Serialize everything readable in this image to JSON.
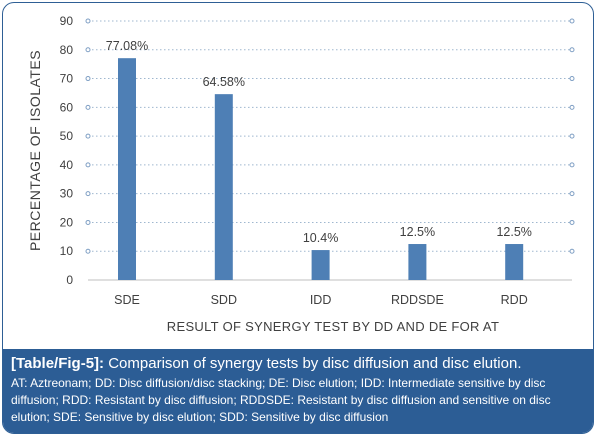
{
  "chart_data": {
    "type": "bar",
    "categories": [
      "SDE",
      "SDD",
      "IDD",
      "RDDSDE",
      "RDD"
    ],
    "values": [
      77.08,
      64.58,
      10.4,
      12.5,
      12.5
    ],
    "data_labels": [
      "77.08%",
      "64.58%",
      "10.4%",
      "12.5%",
      "12.5%"
    ],
    "xlabel": "RESULT OF SYNERGY TEST BY DD AND DE FOR AT",
    "ylabel": "PERCENTAGE OF ISOLATES",
    "ylim": [
      0,
      90
    ],
    "yticks": [
      0,
      10,
      20,
      30,
      40,
      50,
      60,
      70,
      80,
      90
    ],
    "grid": "horizontal dotted with circle markers",
    "bar_color": "#4e7fb5"
  },
  "caption": {
    "label": "[Table/Fig-5]:",
    "title": "Comparison of synergy tests by disc diffusion and disc elution.",
    "notes": "AT: Aztreonam; DD: Disc diffusion/disc stacking; DE: Disc elution; IDD: Intermediate sensitive by disc diffusion; RDD: Resistant by disc diffusion; RDDSDE: Resistant by disc diffusion and sensitive on disc elution; SDE: Sensitive by disc elution; SDD: Sensitive by disc diffusion",
    "background": "#2c5d95"
  }
}
